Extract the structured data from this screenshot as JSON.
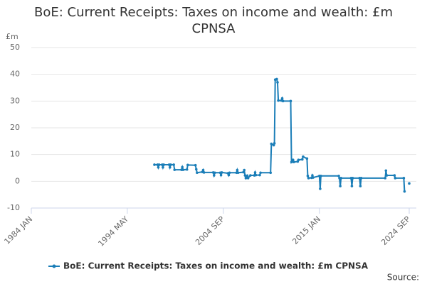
{
  "chart_data": {
    "type": "line",
    "title": "BoE: Current Receipts: Taxes on income and wealth: £m CPNSA",
    "y_label": "£m",
    "source": "Source:",
    "xlim": [
      "1984 JAN",
      "2024 SEP"
    ],
    "xticks": [
      "1984 JAN",
      "1994 MAY",
      "2004 SEP",
      "2015 JAN",
      "2024 SEP"
    ],
    "ylim": [
      -10,
      50
    ],
    "yticks": [
      -10,
      0,
      10,
      20,
      30,
      40,
      50
    ],
    "grid": true,
    "series": [
      {
        "name": "BoE: Current Receipts: Taxes on income and wealth: £m CPNSA",
        "color": "#1b7eb8",
        "x": [
          "1997 APR",
          "1997 AUG",
          "1997 SEP",
          "1997 OCT",
          "1998 FEB",
          "1998 MAR",
          "1998 APR",
          "1998 NOV",
          "1998 DEC",
          "1999 JAN",
          "1999 MAY",
          "1999 JUN",
          "2000 MAR",
          "2000 APR",
          "2000 MAY",
          "2000 OCT",
          "2000 NOV",
          "2001 SEP",
          "2001 OCT",
          "2001 NOV",
          "2002 JUN",
          "2002 JUL",
          "2002 AUG",
          "2003 AUG",
          "2003 SEP",
          "2003 OCT",
          "2004 MAY",
          "2004 JUN",
          "2004 JUL",
          "2005 MAR",
          "2005 APR",
          "2005 MAY",
          "2006 FEB",
          "2006 MAR",
          "2006 APR",
          "2006 NOV",
          "2006 DEC",
          "2007 JAN",
          "2007 FEB",
          "2007 APR",
          "2007 MAY",
          "2007 AUG",
          "2008 JAN",
          "2008 FEB",
          "2008 MAR",
          "2008 AUG",
          "2008 SEP",
          "2009 OCT",
          "2009 NOV",
          "2010 FEB",
          "2010 MAR",
          "2010 APR",
          "2010 JUN",
          "2010 JUL",
          "2010 AUG",
          "2010 DEC",
          "2011 JAN",
          "2011 FEB",
          "2011 DEC",
          "2012 JAN",
          "2012 MAR",
          "2012 APR",
          "2012 SEP",
          "2012 OCT",
          "2013 MAR",
          "2013 APR",
          "2013 SEP",
          "2013 OCT",
          "2013 NOV",
          "2014 MAR",
          "2014 APR",
          "2014 MAY",
          "2015 JAN",
          "2015 FEB",
          "2015 MAR",
          "2017 FEB",
          "2017 MAR",
          "2017 APR",
          "2017 MAY",
          "2018 JUN",
          "2018 JUL",
          "2018 AUG",
          "2019 MAY",
          "2019 JUN",
          "2019 JUL",
          "2022 FEB",
          "2022 MAR",
          "2022 APR",
          "2023 FEB",
          "2023 MAR",
          "2024 FEB",
          "2024 MAR",
          "2024 JUN",
          "2024 SEP"
        ],
        "values": [
          6.2,
          6.2,
          5.2,
          6.2,
          6.2,
          5.2,
          6.2,
          6.2,
          5.2,
          6.2,
          6.2,
          4.3,
          4.3,
          5.3,
          4.3,
          4.4,
          6.1,
          6.0,
          4.5,
          3.2,
          3.5,
          4.2,
          3.3,
          3.3,
          2.2,
          3.2,
          3.2,
          2.3,
          3.3,
          3.0,
          2.3,
          3.2,
          3.2,
          4.2,
          3.2,
          3.4,
          4.2,
          2.2,
          1.2,
          2.1,
          1.2,
          2.2,
          2.2,
          3.3,
          2.3,
          2.3,
          3.2,
          3.2,
          14.0,
          13.5,
          14.2,
          38.0,
          38.2,
          37.0,
          30.2,
          30.2,
          31.0,
          30.0,
          30.0,
          7.2,
          8.0,
          7.2,
          7.4,
          8.0,
          8.2,
          9.2,
          8.5,
          2.0,
          1.2,
          1.3,
          2.2,
          1.4,
          2.0,
          -2.8,
          2.0,
          2.0,
          1.2,
          -1.8,
          1.2,
          1.2,
          -1.8,
          1.2,
          1.2,
          -1.8,
          1.2,
          1.2,
          4.0,
          2.2,
          2.2,
          1.2,
          1.2,
          -3.8,
          null,
          -0.8
        ]
      }
    ]
  }
}
